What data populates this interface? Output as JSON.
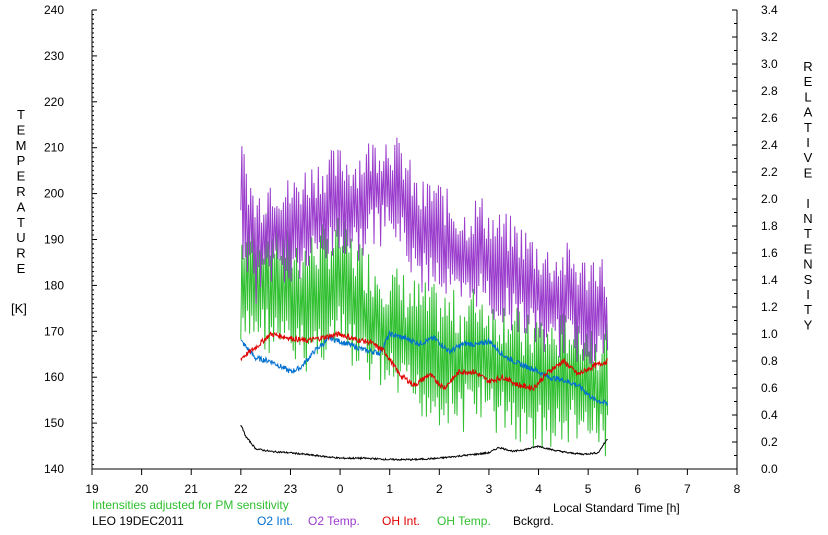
{
  "chart_data": {
    "type": "line",
    "left_axis": {
      "label_letters": [
        "T",
        "E",
        "M",
        "P",
        "E",
        "R",
        "A",
        "T",
        "U",
        "R",
        "E"
      ],
      "unit": "[K]",
      "ticks": [
        "240",
        "230",
        "220",
        "210",
        "200",
        "190",
        "180",
        "170",
        "160",
        "150",
        "140"
      ],
      "ylim": [
        140,
        240
      ]
    },
    "right_axis": {
      "label_letters": [
        "R",
        "E",
        "L",
        "A",
        "T",
        "I",
        "V",
        "E",
        "",
        "I",
        "N",
        "T",
        "E",
        "N",
        "S",
        "I",
        "T",
        "Y"
      ],
      "ticks": [
        "3.4",
        "3.2",
        "3.0",
        "2.8",
        "2.6",
        "2.4",
        "2.2",
        "2.0",
        "1.8",
        "1.6",
        "1.4",
        "1.2",
        "1.0",
        "0.8",
        "0.6",
        "0.4",
        "0.2",
        "0.0"
      ],
      "ylim": [
        0.0,
        3.4
      ]
    },
    "x_axis": {
      "label": "Local Standard Time [h]",
      "ticks": [
        "19",
        "20",
        "21",
        "22",
        "23",
        "0",
        "1",
        "2",
        "3",
        "4",
        "5",
        "6",
        "7",
        "8"
      ],
      "xlim": [
        19,
        32
      ]
    },
    "note": "Intensities adjusted for PM sensitivity",
    "station": "LEO 19DEC2011",
    "grid": false,
    "series": [
      {
        "name": "O2 Int.",
        "axis": "right",
        "color": "#0070d0",
        "x": [
          22.0,
          22.3,
          22.6,
          23.0,
          23.2,
          23.5,
          23.8,
          24.2,
          24.5,
          24.8,
          25.0,
          25.3,
          25.6,
          25.9,
          26.2,
          26.5,
          26.8,
          27.0,
          27.3,
          27.6,
          27.9,
          28.2,
          28.5,
          28.8,
          29.1,
          29.4
        ],
        "y": [
          0.95,
          0.82,
          0.8,
          0.72,
          0.75,
          0.88,
          0.97,
          0.92,
          0.88,
          0.86,
          1.0,
          0.97,
          0.93,
          0.97,
          0.87,
          0.93,
          0.92,
          0.95,
          0.84,
          0.78,
          0.74,
          0.68,
          0.66,
          0.62,
          0.52,
          0.48
        ]
      },
      {
        "name": "O2 Temp.",
        "axis": "left",
        "color": "#9a3ccc",
        "x": [
          22.0,
          22.3,
          22.6,
          23.0,
          23.3,
          23.6,
          24.0,
          24.3,
          24.6,
          25.0,
          25.3,
          25.6,
          25.9,
          26.2,
          26.5,
          26.8,
          27.1,
          27.4,
          27.7,
          28.0,
          28.3,
          28.6,
          28.9,
          29.2,
          29.4
        ],
        "y": [
          200,
          188,
          193,
          191,
          194,
          196,
          198,
          197,
          200,
          202,
          198,
          190,
          192,
          188,
          185,
          188,
          184,
          183,
          181,
          178,
          176,
          177,
          174,
          176,
          172
        ]
      },
      {
        "name": "OH Int.",
        "axis": "right",
        "color": "#e00000",
        "x": [
          22.0,
          22.3,
          22.6,
          23.0,
          23.3,
          23.6,
          24.0,
          24.3,
          24.6,
          24.9,
          25.2,
          25.5,
          25.8,
          26.1,
          26.4,
          26.7,
          27.0,
          27.3,
          27.6,
          27.9,
          28.2,
          28.5,
          28.8,
          29.1,
          29.4
        ],
        "y": [
          0.82,
          0.9,
          1.0,
          0.97,
          0.95,
          0.97,
          1.0,
          0.96,
          0.94,
          0.87,
          0.7,
          0.62,
          0.7,
          0.6,
          0.72,
          0.72,
          0.65,
          0.68,
          0.62,
          0.6,
          0.72,
          0.8,
          0.7,
          0.76,
          0.8
        ]
      },
      {
        "name": "OH Temp.",
        "axis": "left",
        "color": "#2fbf2f",
        "x": [
          22.0,
          22.3,
          22.6,
          23.0,
          23.3,
          23.6,
          24.0,
          24.3,
          24.6,
          25.0,
          25.3,
          25.6,
          25.9,
          26.2,
          26.5,
          26.8,
          27.1,
          27.4,
          27.7,
          28.0,
          28.3,
          28.6,
          28.9,
          29.2,
          29.4
        ],
        "y": [
          178,
          182,
          180,
          177,
          176,
          178,
          180,
          176,
          173,
          170,
          168,
          166,
          165,
          164,
          163,
          166,
          162,
          163,
          158,
          160,
          158,
          160,
          160,
          157,
          158
        ]
      },
      {
        "name": "Bckgrd.",
        "axis": "right",
        "color": "#000000",
        "x": [
          22.0,
          22.1,
          22.3,
          22.6,
          23.0,
          23.5,
          24.0,
          24.5,
          25.0,
          25.5,
          26.0,
          26.5,
          27.0,
          27.2,
          27.5,
          27.8,
          28.0,
          28.3,
          28.6,
          28.9,
          29.2,
          29.4
        ],
        "y": [
          0.33,
          0.24,
          0.15,
          0.13,
          0.12,
          0.1,
          0.08,
          0.08,
          0.07,
          0.07,
          0.08,
          0.1,
          0.12,
          0.16,
          0.13,
          0.15,
          0.17,
          0.14,
          0.12,
          0.11,
          0.12,
          0.23
        ]
      }
    ]
  }
}
